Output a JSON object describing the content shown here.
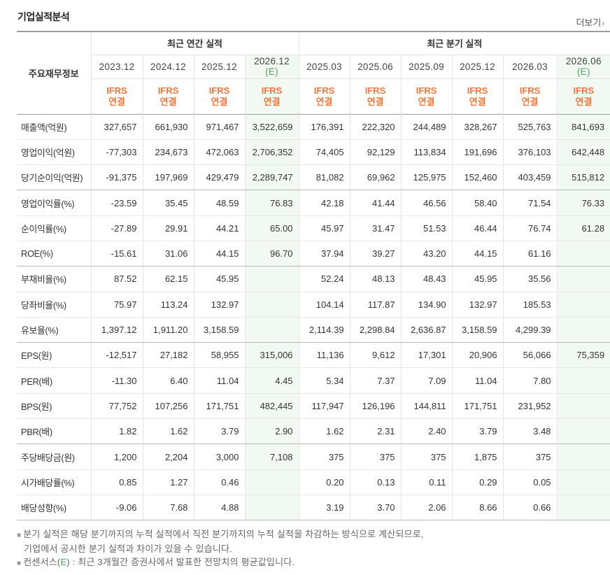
{
  "title": "기업실적분석",
  "more_label": "더보기",
  "header": {
    "row_label": "주요재무정보",
    "annual_group": "최근 연간 실적",
    "quarter_group": "최근 분기 실적",
    "columns": [
      {
        "date": "2023.12",
        "est": ""
      },
      {
        "date": "2024.12",
        "est": ""
      },
      {
        "date": "2025.12",
        "est": ""
      },
      {
        "date": "2026.12",
        "est": "(E)"
      },
      {
        "date": "2025.03",
        "est": ""
      },
      {
        "date": "2025.06",
        "est": ""
      },
      {
        "date": "2025.09",
        "est": ""
      },
      {
        "date": "2025.12",
        "est": ""
      },
      {
        "date": "2026.03",
        "est": ""
      },
      {
        "date": "2026.06",
        "est": "(E)"
      }
    ],
    "ifrs_top": "IFRS",
    "ifrs_bottom": "연결"
  },
  "rows": [
    {
      "label": "매출액(억원)",
      "values": [
        "327,657",
        "661,930",
        "971,467",
        "3,522,659",
        "176,391",
        "222,320",
        "244,489",
        "328,267",
        "525,763",
        "841,693"
      ]
    },
    {
      "label": "영업이익(억원)",
      "values": [
        "-77,303",
        "234,673",
        "472,063",
        "2,706,352",
        "74,405",
        "92,129",
        "113,834",
        "191,696",
        "376,103",
        "642,448"
      ]
    },
    {
      "label": "당기순이익(억원)",
      "values": [
        "-91,375",
        "197,969",
        "429,479",
        "2,289,747",
        "81,082",
        "69,962",
        "125,975",
        "152,460",
        "403,459",
        "515,812"
      ]
    },
    {
      "label": "영업이익률(%)",
      "values": [
        "-23.59",
        "35.45",
        "48.59",
        "76.83",
        "42.18",
        "41.44",
        "46.56",
        "58.40",
        "71.54",
        "76.33"
      ]
    },
    {
      "label": "순이익률(%)",
      "values": [
        "-27.89",
        "29.91",
        "44.21",
        "65.00",
        "45.97",
        "31.47",
        "51.53",
        "46.44",
        "76.74",
        "61.28"
      ]
    },
    {
      "label": "ROE(%)",
      "values": [
        "-15.61",
        "31.06",
        "44.15",
        "96.70",
        "37.94",
        "39.27",
        "43.20",
        "44.15",
        "61.16",
        ""
      ]
    },
    {
      "label": "부채비율(%)",
      "values": [
        "87.52",
        "62.15",
        "45.95",
        "",
        "52.24",
        "48.13",
        "48.43",
        "45.95",
        "35.56",
        ""
      ]
    },
    {
      "label": "당좌비율(%)",
      "values": [
        "75.97",
        "113.24",
        "132.97",
        "",
        "104.14",
        "117.87",
        "134.90",
        "132.97",
        "185.53",
        ""
      ]
    },
    {
      "label": "유보율(%)",
      "values": [
        "1,397.12",
        "1,911.20",
        "3,158.59",
        "",
        "2,114.39",
        "2,298.84",
        "2,636.87",
        "3,158.59",
        "4,299.39",
        ""
      ]
    },
    {
      "label": "EPS(원)",
      "values": [
        "-12,517",
        "27,182",
        "58,955",
        "315,006",
        "11,136",
        "9,612",
        "17,301",
        "20,906",
        "56,066",
        "75,359"
      ]
    },
    {
      "label": "PER(배)",
      "values": [
        "-11.30",
        "6.40",
        "11.04",
        "4.45",
        "5.34",
        "7.37",
        "7.09",
        "11.04",
        "7.80",
        ""
      ]
    },
    {
      "label": "BPS(원)",
      "values": [
        "77,752",
        "107,256",
        "171,751",
        "482,445",
        "117,947",
        "126,196",
        "144,811",
        "171,751",
        "231,952",
        ""
      ]
    },
    {
      "label": "PBR(배)",
      "values": [
        "1.82",
        "1.62",
        "3.79",
        "2.90",
        "1.62",
        "2.31",
        "2.40",
        "3.79",
        "3.48",
        ""
      ]
    },
    {
      "label": "주당배당금(원)",
      "values": [
        "1,200",
        "2,204",
        "3,000",
        "7,108",
        "375",
        "375",
        "375",
        "1,875",
        "375",
        ""
      ]
    },
    {
      "label": "시가배당률(%)",
      "values": [
        "0.85",
        "1.27",
        "0.46",
        "",
        "0.20",
        "0.13",
        "0.11",
        "0.29",
        "0.05",
        ""
      ]
    },
    {
      "label": "배당성향(%)",
      "values": [
        "-9.06",
        "7.68",
        "4.88",
        "",
        "3.19",
        "3.70",
        "2.06",
        "8.66",
        "0.66",
        ""
      ]
    }
  ],
  "notes": {
    "line1": "분기 실적은 해당 분기까지의 누적 실적에서 직전 분기까지의 누적 실적을 차감하는 방식으로 계산되므로,",
    "line2": "기업에서 공시한 분기 실적과 차이가 있을 수 있습니다.",
    "line3_prefix": "컨센서스(",
    "line3_e": "E",
    "line3_suffix": ") : 최근 3개월간 증권사에서 발표한 전망치의 평균값입니다."
  },
  "colors": {
    "negative": "#d9302e",
    "ifrs": "#f1773a",
    "estimate_mark": "#55a564",
    "estimate_bg": "#f2f9f2"
  }
}
